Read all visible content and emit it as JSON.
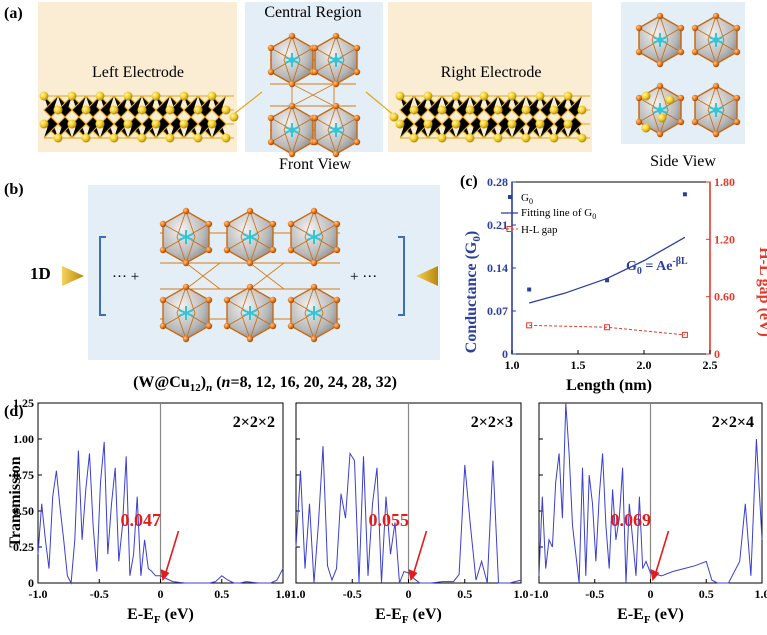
{
  "panel_labels": {
    "a": "(a)",
    "b": "(b)",
    "c": "(c)",
    "d": "(d)"
  },
  "panel_a": {
    "left_label": "Left Electrode",
    "central_label": "Central Region",
    "right_label": "Right Electrode",
    "front_view": "Front View",
    "side_view": "Side View"
  },
  "panel_b": {
    "dim_label": "1D",
    "left_ellipsis": "··· +",
    "right_ellipsis": "+ ···",
    "formula_main": "(W@Cu",
    "formula_sub": "12",
    "formula_close": ")",
    "formula_n": "n",
    "formula_paren": " (",
    "formula_n2": "n",
    "formula_values": "=8, 12, 16, 20, 24, 28, 32)"
  },
  "chart_data": [
    {
      "type": "scatter",
      "panel": "c",
      "xlabel": "Length (nm)",
      "ylabel_left": "Conductance (G",
      "ylabel_left_sub": "0",
      "ylabel_left_close": ")",
      "ylabel_right": "H-L gap (eV)",
      "xlim": [
        1.0,
        2.5
      ],
      "ylim_left": [
        0,
        0.28
      ],
      "ylim_right": [
        0,
        1.8
      ],
      "xticks": [
        "1.0",
        "1.5",
        "2.0",
        "2.5"
      ],
      "yticks_left": [
        "0",
        "0.07",
        "0.14",
        "0.21",
        "0.28"
      ],
      "yticks_right": [
        "0",
        "0.60",
        "1.20",
        "1.80"
      ],
      "legend": {
        "g0": "G",
        "g0_sub": "0",
        "fit": "Fitting line of G",
        "fit_sub": "0",
        "hl": "H-L gap"
      },
      "equation": "G",
      "equation_sub": "0",
      "equation_rest": " = Ae",
      "equation_exp": "-βL",
      "series": [
        {
          "name": "G0",
          "x": [
            1.13,
            1.72,
            2.31
          ],
          "y": [
            0.105,
            0.12,
            0.26
          ],
          "color": "#2a3f9e"
        },
        {
          "name": "Fitting line of G0",
          "x": [
            1.13,
            1.4,
            1.72,
            2.0,
            2.31
          ],
          "y": [
            0.083,
            0.099,
            0.123,
            0.152,
            0.19
          ],
          "color": "#2a3f9e"
        },
        {
          "name": "H-L gap",
          "x": [
            1.13,
            1.72,
            2.31
          ],
          "y": [
            0.3,
            0.28,
            0.2
          ],
          "color": "#e33a2b"
        }
      ],
      "accent_left": "#2a3f9e",
      "accent_right": "#e33a2b"
    },
    {
      "type": "line",
      "panel": "d",
      "ylabel": "Transmission",
      "xlabel": "E-E",
      "xlabel_sub": "F",
      "xlabel_rest": " (eV)",
      "xlim": [
        -1.0,
        1.0
      ],
      "ylim": [
        0,
        1.25
      ],
      "xticks": [
        "-1.0",
        "-0.5",
        "0",
        "0.5",
        "1.0"
      ],
      "yticks": [
        "0",
        "0.25",
        "0.50",
        "0.75",
        "1.00",
        "1.25"
      ],
      "line_color": "#3b3fcf",
      "plots": [
        {
          "title": "2×2×2",
          "annotation": "0.047",
          "x": [
            -1.0,
            -0.97,
            -0.94,
            -0.91,
            -0.88,
            -0.85,
            -0.82,
            -0.79,
            -0.76,
            -0.73,
            -0.7,
            -0.67,
            -0.64,
            -0.61,
            -0.58,
            -0.55,
            -0.52,
            -0.49,
            -0.46,
            -0.43,
            -0.4,
            -0.37,
            -0.34,
            -0.31,
            -0.28,
            -0.25,
            -0.22,
            -0.19,
            -0.16,
            -0.13,
            -0.1,
            -0.07,
            -0.04,
            0.0,
            0.1,
            0.2,
            0.3,
            0.4,
            0.45,
            0.5,
            0.55,
            0.6,
            0.65,
            0.7,
            0.8,
            0.9,
            0.95,
            1.0
          ],
          "y": [
            0.2,
            0.55,
            0.3,
            0.1,
            0.6,
            0.78,
            0.52,
            0.3,
            0.05,
            0.0,
            0.3,
            0.92,
            0.3,
            0.65,
            0.9,
            0.4,
            0.08,
            0.7,
            0.98,
            0.2,
            0.55,
            0.8,
            0.15,
            0.4,
            0.88,
            0.05,
            0.2,
            0.6,
            0.05,
            0.3,
            0.1,
            0.08,
            0.05,
            0.05,
            0.01,
            0.0,
            0.0,
            0.0,
            0.01,
            0.05,
            0.02,
            0.0,
            0.0,
            0.01,
            0.0,
            0.0,
            0.02,
            0.1
          ]
        },
        {
          "title": "2×2×3",
          "annotation": "0.055",
          "x": [
            -1.0,
            -0.96,
            -0.92,
            -0.88,
            -0.84,
            -0.8,
            -0.76,
            -0.72,
            -0.68,
            -0.64,
            -0.6,
            -0.56,
            -0.52,
            -0.48,
            -0.44,
            -0.4,
            -0.36,
            -0.32,
            -0.28,
            -0.24,
            -0.2,
            -0.16,
            -0.12,
            -0.08,
            -0.04,
            0.0,
            0.05,
            0.1,
            0.2,
            0.3,
            0.4,
            0.45,
            0.5,
            0.55,
            0.6,
            0.65,
            0.7,
            0.75,
            0.8,
            0.9,
            1.0
          ],
          "y": [
            0.25,
            0.78,
            0.1,
            0.55,
            0.0,
            0.42,
            0.95,
            0.12,
            0.02,
            0.1,
            0.62,
            0.45,
            0.9,
            0.85,
            0.0,
            0.88,
            0.05,
            0.55,
            0.8,
            0.0,
            0.6,
            0.2,
            0.42,
            0.0,
            0.08,
            0.07,
            0.03,
            0.0,
            0.0,
            0.01,
            0.01,
            0.06,
            0.82,
            0.4,
            0.02,
            0.15,
            0.0,
            0.85,
            0.0,
            0.0,
            0.02
          ]
        },
        {
          "title": "2×2×4",
          "annotation": "0.069",
          "x": [
            -1.0,
            -0.97,
            -0.94,
            -0.91,
            -0.88,
            -0.85,
            -0.82,
            -0.79,
            -0.76,
            -0.73,
            -0.7,
            -0.67,
            -0.64,
            -0.61,
            -0.58,
            -0.55,
            -0.52,
            -0.49,
            -0.46,
            -0.43,
            -0.4,
            -0.37,
            -0.34,
            -0.31,
            -0.28,
            -0.25,
            -0.22,
            -0.19,
            -0.16,
            -0.13,
            -0.1,
            -0.07,
            -0.04,
            0.0,
            0.1,
            0.2,
            0.3,
            0.4,
            0.5,
            0.55,
            0.6,
            0.65,
            0.7,
            0.8,
            0.85,
            0.9,
            0.95,
            1.0
          ],
          "y": [
            0.05,
            0.6,
            0.1,
            0.3,
            0.25,
            0.7,
            0.9,
            0.45,
            1.28,
            0.9,
            0.4,
            0.2,
            0.0,
            0.8,
            0.05,
            0.75,
            0.55,
            0.15,
            0.6,
            0.9,
            0.4,
            0.1,
            0.65,
            0.3,
            0.45,
            0.8,
            0.0,
            0.55,
            0.3,
            0.05,
            0.6,
            0.1,
            0.15,
            0.07,
            0.05,
            0.08,
            0.1,
            0.12,
            0.15,
            0.02,
            0.0,
            0.0,
            0.0,
            0.15,
            0.55,
            0.05,
            1.0,
            0.3
          ]
        }
      ]
    }
  ]
}
